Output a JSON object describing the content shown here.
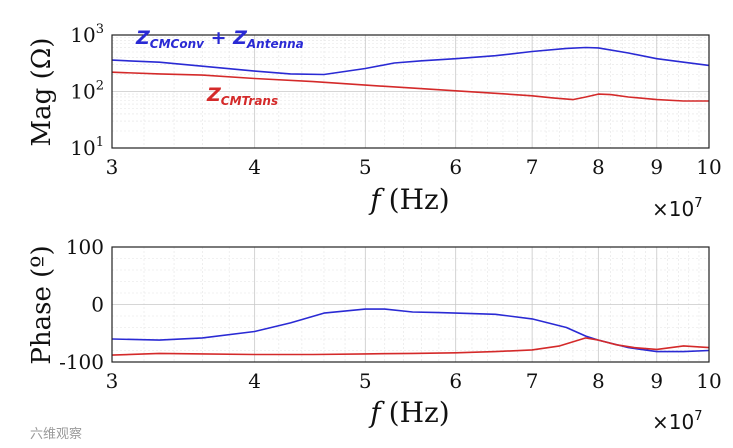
{
  "chart_data": [
    {
      "type": "line",
      "name": "magnitude",
      "ylabel": "Mag (Ω)",
      "xlabel_symbol": "f",
      "xlabel_unit": "(Hz)",
      "x_multiplier": "×10",
      "x_multiplier_exp": "7",
      "xscale": "log",
      "yscale": "log",
      "xlim": [
        3,
        10
      ],
      "ylim": [
        10,
        1000
      ],
      "grid": true,
      "xticks": [
        3,
        4,
        5,
        6,
        7,
        8,
        9,
        10
      ],
      "xtick_labels": [
        "3",
        "4",
        "5",
        "6",
        "7",
        "8",
        "9",
        "10"
      ],
      "yticks": [
        {
          "value": 10,
          "base": "10",
          "exp": "1"
        },
        {
          "value": 100,
          "base": "10",
          "exp": "2"
        },
        {
          "value": 1000,
          "base": "10",
          "exp": "3"
        }
      ],
      "series": [
        {
          "name": "Z_CMConv + Z_Antenna",
          "color": "#2a2ad4",
          "x": [
            3,
            3.3,
            3.6,
            4.0,
            4.3,
            4.6,
            5.0,
            5.3,
            5.6,
            6.0,
            6.5,
            7.0,
            7.5,
            7.8,
            8.0,
            8.5,
            9.0,
            9.5,
            10
          ],
          "y": [
            360,
            330,
            280,
            230,
            205,
            200,
            255,
            320,
            350,
            380,
            430,
            510,
            580,
            600,
            590,
            480,
            380,
            330,
            290
          ]
        },
        {
          "name": "Z_CMTrans",
          "color": "#d42a2a",
          "x": [
            3,
            3.3,
            3.6,
            4.0,
            4.5,
            5.0,
            5.5,
            6.0,
            6.5,
            7.0,
            7.3,
            7.6,
            7.8,
            8.0,
            8.2,
            8.5,
            9.0,
            9.5,
            10
          ],
          "y": [
            220,
            205,
            195,
            170,
            150,
            130,
            115,
            103,
            93,
            84,
            77,
            72,
            80,
            90,
            88,
            80,
            72,
            68,
            68
          ]
        }
      ],
      "annotations": [
        {
          "series": 0,
          "text": "Z",
          "sub": "CMConv",
          "op": " + ",
          "text2": "Z",
          "sub2": "Antenna"
        },
        {
          "series": 1,
          "text": "Z",
          "sub": "CMTrans"
        }
      ]
    },
    {
      "type": "line",
      "name": "phase",
      "ylabel": "Phase (º)",
      "xlabel_symbol": "f",
      "xlabel_unit": "(Hz)",
      "x_multiplier": "×10",
      "x_multiplier_exp": "7",
      "xscale": "log",
      "yscale": "linear",
      "xlim": [
        3,
        10
      ],
      "ylim": [
        -100,
        100
      ],
      "grid": true,
      "xticks": [
        3,
        4,
        5,
        6,
        7,
        8,
        9,
        10
      ],
      "xtick_labels": [
        "3",
        "4",
        "5",
        "6",
        "7",
        "8",
        "9",
        "10"
      ],
      "yticks": [
        100,
        0,
        -100
      ],
      "ytick_labels": [
        "100",
        "0",
        "-100"
      ],
      "series": [
        {
          "name": "Z_CMConv + Z_Antenna",
          "color": "#2a2ad4",
          "x": [
            3,
            3.3,
            3.6,
            4.0,
            4.3,
            4.6,
            5.0,
            5.2,
            5.5,
            5.8,
            6.0,
            6.5,
            7.0,
            7.5,
            7.8,
            8.0,
            8.5,
            9.0,
            9.5,
            10
          ],
          "y": [
            -60,
            -62,
            -58,
            -47,
            -32,
            -15,
            -8,
            -8,
            -13,
            -14,
            -15,
            -17,
            -25,
            -40,
            -55,
            -62,
            -75,
            -82,
            -82,
            -80
          ]
        },
        {
          "name": "Z_CMTrans",
          "color": "#d42a2a",
          "x": [
            3,
            3.3,
            3.6,
            4.0,
            4.5,
            5.0,
            5.5,
            6.0,
            6.5,
            7.0,
            7.4,
            7.8,
            8.0,
            8.3,
            8.6,
            9.0,
            9.5,
            10
          ],
          "y": [
            -88,
            -85,
            -86,
            -87,
            -87,
            -86,
            -85,
            -84,
            -82,
            -79,
            -72,
            -58,
            -62,
            -70,
            -75,
            -78,
            -72,
            -75
          ]
        }
      ]
    }
  ],
  "watermark": "六维观察"
}
